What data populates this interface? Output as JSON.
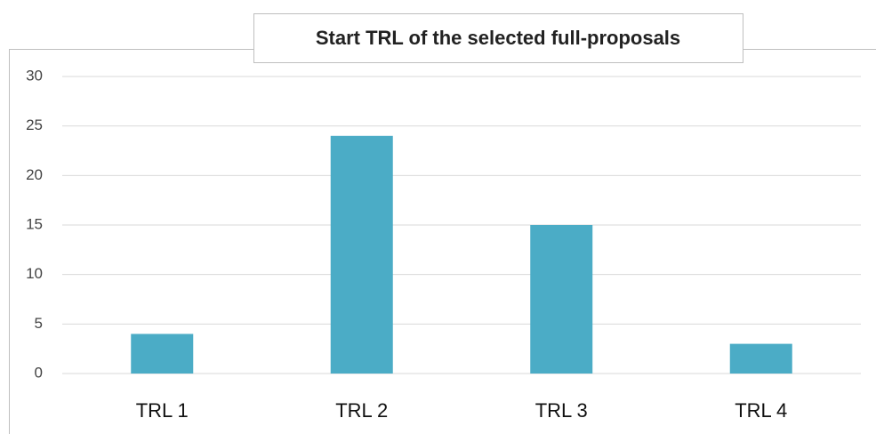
{
  "chart_data": {
    "type": "bar",
    "title": "Start TRL of the selected full-proposals",
    "categories": [
      "TRL 1",
      "TRL 2",
      "TRL 3",
      "TRL 4"
    ],
    "values": [
      4,
      24,
      15,
      3
    ],
    "color": "#4bacc6",
    "ylim": [
      0,
      30
    ],
    "yticks": [
      0,
      5,
      10,
      15,
      20,
      25,
      30
    ],
    "grid": true
  }
}
